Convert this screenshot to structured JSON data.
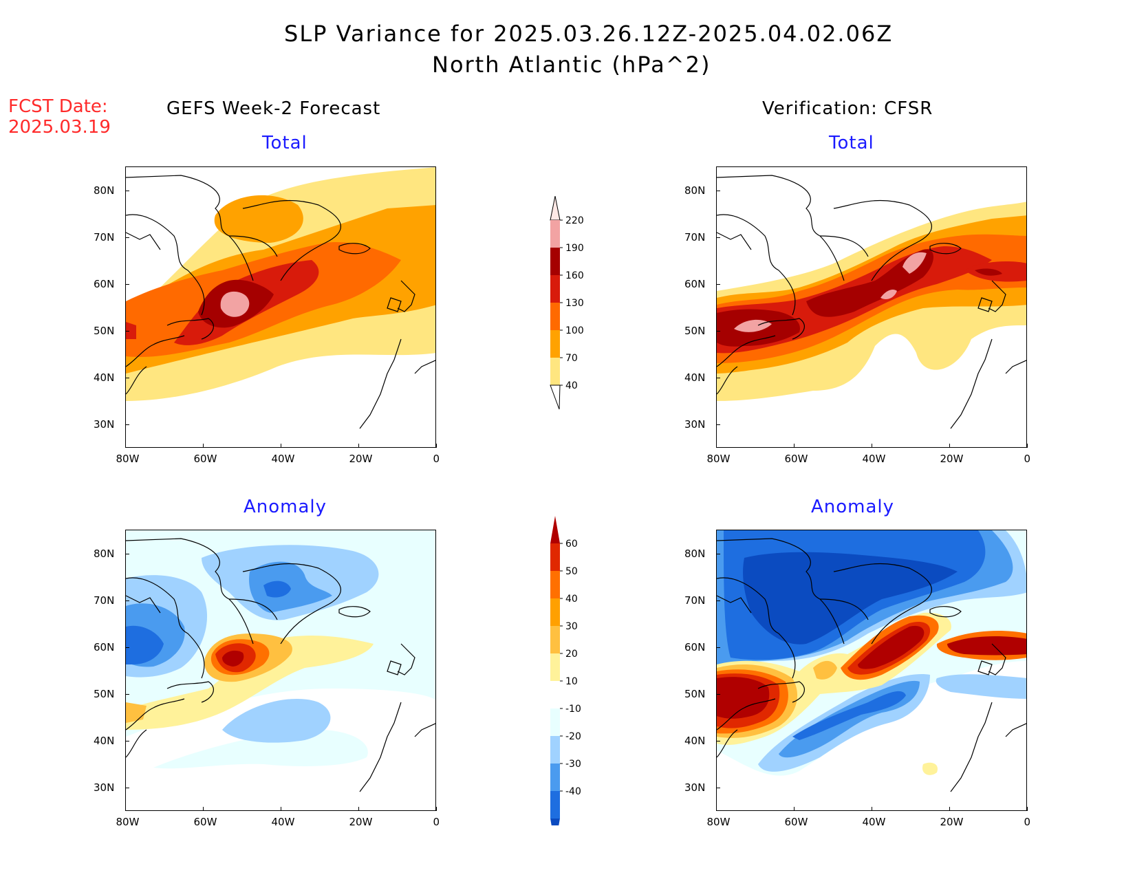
{
  "title": {
    "line1": "SLP Variance for 2025.03.26.12Z-2025.04.02.06Z",
    "line2": "North Atlantic (hPa^2)"
  },
  "forecast_date": {
    "label": "FCST Date:",
    "value": "2025.03.19"
  },
  "columns": {
    "left": "GEFS Week-2 Forecast",
    "right": "Verification: CFSR"
  },
  "panels": {
    "top_left": "Total",
    "top_right": "Total",
    "bottom_left": "Anomaly",
    "bottom_right": "Anomaly"
  },
  "axes": {
    "lat_labels": [
      "80N",
      "70N",
      "60N",
      "50N",
      "40N",
      "30N"
    ],
    "lon_labels": [
      "80W",
      "60W",
      "40W",
      "20W",
      "0"
    ]
  },
  "colorbars": {
    "total": {
      "levels": [
        "220",
        "190",
        "160",
        "130",
        "100",
        "70",
        "40"
      ],
      "colors": [
        "#fde9e6",
        "#f2a3a3",
        "#a50000",
        "#d81b0b",
        "#ff6a00",
        "#ffa200",
        "#ffe680"
      ]
    },
    "anomaly": {
      "levels": [
        "60",
        "50",
        "40",
        "30",
        "20",
        "10",
        "-10",
        "-20",
        "-30",
        "-40"
      ],
      "colors_warm": [
        "#b00000",
        "#e02800",
        "#ff7000",
        "#ffa000",
        "#ffc040",
        "#fff29a"
      ],
      "colors_cool": [
        "#e8ffff",
        "#a0d2ff",
        "#4a9bef",
        "#1e6ee0",
        "#0b4bc0"
      ]
    }
  }
}
